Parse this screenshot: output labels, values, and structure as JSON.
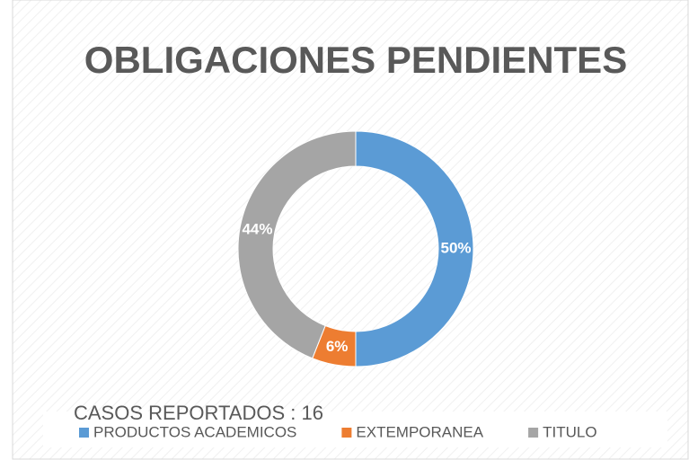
{
  "chart_data": {
    "type": "pie",
    "donut": true,
    "title": "OBLIGACIONES PENDIENTES",
    "annotation": "CASOS REPORTADOS : 16",
    "categories": [
      "PRODUCTOS ACADEMICOS",
      "EXTEMPORANEA",
      "TITULO"
    ],
    "values": [
      50,
      6,
      44
    ],
    "value_labels": [
      "50%",
      "6%",
      "44%"
    ],
    "colors": [
      "#5b9bd5",
      "#ed7d31",
      "#a5a5a5"
    ],
    "legend": "bottom"
  }
}
